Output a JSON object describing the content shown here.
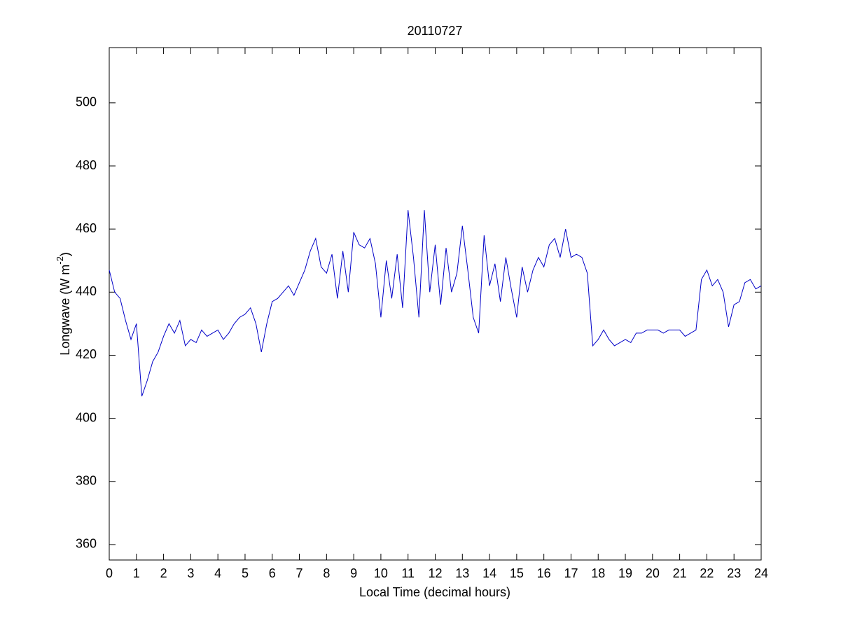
{
  "chart_data": {
    "type": "line",
    "title": "20110727",
    "xlabel": "Local Time (decimal hours)",
    "ylabel_parts": [
      "Longwave (W m",
      "-2",
      ")"
    ],
    "x": [
      0,
      0.2,
      0.4,
      0.6,
      0.8,
      1,
      1.2,
      1.4,
      1.6,
      1.8,
      2,
      2.2,
      2.4,
      2.6,
      2.8,
      3,
      3.2,
      3.4,
      3.6,
      3.8,
      4,
      4.2,
      4.4,
      4.6,
      4.8,
      5,
      5.2,
      5.4,
      5.6,
      5.8,
      6,
      6.2,
      6.4,
      6.6,
      6.8,
      7,
      7.2,
      7.4,
      7.6,
      7.8,
      8,
      8.2,
      8.4,
      8.6,
      8.8,
      9,
      9.2,
      9.4,
      9.6,
      9.8,
      10,
      10.2,
      10.4,
      10.6,
      10.8,
      11,
      11.2,
      11.4,
      11.6,
      11.8,
      12,
      12.2,
      12.4,
      12.6,
      12.8,
      13,
      13.2,
      13.4,
      13.6,
      13.8,
      14,
      14.2,
      14.4,
      14.6,
      14.8,
      15,
      15.2,
      15.4,
      15.6,
      15.8,
      16,
      16.2,
      16.4,
      16.6,
      16.8,
      17,
      17.2,
      17.4,
      17.6,
      17.8,
      18,
      18.2,
      18.4,
      18.6,
      18.8,
      19,
      19.2,
      19.4,
      19.6,
      19.8,
      20,
      20.2,
      20.4,
      20.6,
      20.8,
      21,
      21.2,
      21.4,
      21.6,
      21.8,
      22,
      22.2,
      22.4,
      22.6,
      22.8,
      23,
      23.2,
      23.4,
      23.6,
      23.8,
      24
    ],
    "series": [
      {
        "name": "Longwave",
        "color": "#0000c8",
        "values": [
          447,
          440,
          438,
          431,
          425,
          430,
          407,
          412,
          418,
          421,
          426,
          430,
          427,
          431,
          423,
          425,
          424,
          428,
          426,
          427,
          428,
          425,
          427,
          430,
          432,
          433,
          435,
          430,
          421,
          430,
          437,
          438,
          440,
          442,
          439,
          443,
          447,
          453,
          457,
          448,
          446,
          452,
          438,
          453,
          440,
          459,
          455,
          454,
          457,
          449,
          432,
          450,
          438,
          452,
          435,
          466,
          451,
          432,
          466,
          440,
          455,
          436,
          454,
          440,
          446,
          461,
          447,
          432,
          427,
          458,
          442,
          449,
          437,
          451,
          441,
          432,
          448,
          440,
          447,
          451,
          448,
          455,
          457,
          451,
          460,
          451,
          452,
          451,
          446,
          423,
          425,
          428,
          425,
          423,
          424,
          425,
          424,
          427,
          427,
          428,
          428,
          428,
          427,
          428,
          428,
          428,
          426,
          427,
          428,
          444,
          447,
          442,
          444,
          440,
          429,
          436,
          437,
          443,
          444,
          441,
          442
        ]
      }
    ],
    "xlim": [
      0,
      24
    ],
    "ylim": [
      355.1,
      517.5
    ],
    "xticks": [
      0,
      1,
      2,
      3,
      4,
      5,
      6,
      7,
      8,
      9,
      10,
      11,
      12,
      13,
      14,
      15,
      16,
      17,
      18,
      19,
      20,
      21,
      22,
      23,
      24
    ],
    "yticks": [
      360,
      380,
      400,
      420,
      440,
      460,
      480,
      500
    ]
  }
}
